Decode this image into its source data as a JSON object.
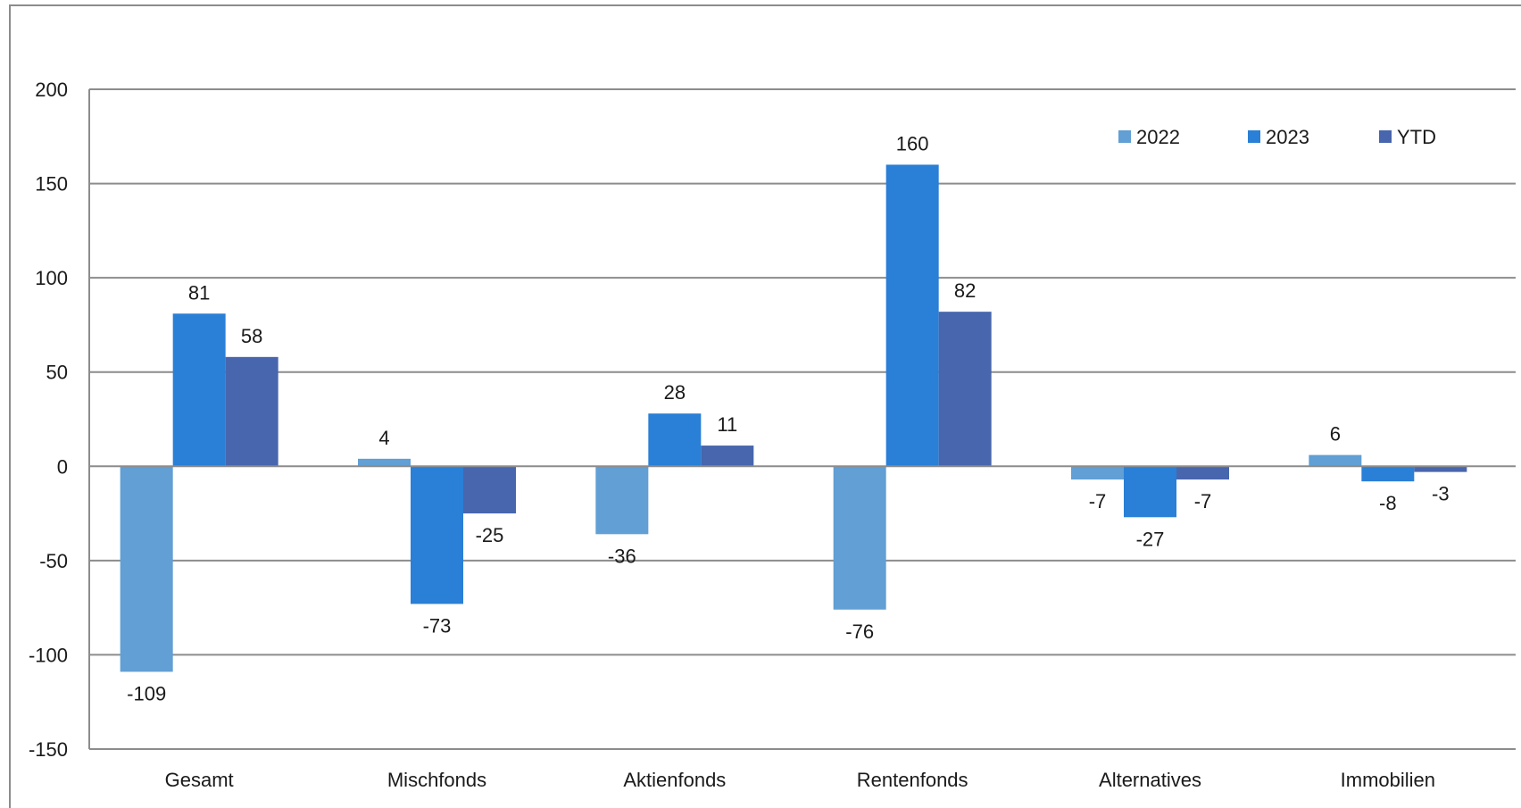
{
  "chart_data": {
    "type": "bar",
    "categories": [
      "Gesamt",
      "Mischfonds",
      "Aktienfonds",
      "Rentenfonds",
      "Alternatives",
      "Immobilien"
    ],
    "series": [
      {
        "name": "2022",
        "color": "#619fd4",
        "values": [
          -109,
          4,
          -36,
          -76,
          -7,
          6
        ]
      },
      {
        "name": "2023",
        "color": "#2a7fd6",
        "values": [
          81,
          -73,
          28,
          160,
          -27,
          -8
        ]
      },
      {
        "name": "YTD",
        "color": "#4866ad",
        "values": [
          58,
          -25,
          11,
          82,
          -7,
          -3
        ]
      }
    ],
    "ylim": [
      -150,
      200
    ],
    "yticks": [
      200,
      150,
      100,
      50,
      0,
      -50,
      -100,
      -150
    ],
    "ytick_labels": [
      "200",
      "150",
      "100",
      "50",
      "0",
      "-50",
      "-100",
      "-150"
    ],
    "data_labels": [
      [
        "-109",
        "4",
        "-36",
        "-76",
        "-7",
        "6"
      ],
      [
        "81",
        "-73",
        "28",
        "160",
        "-27",
        "-8"
      ],
      [
        "58",
        "-25",
        "11",
        "82",
        "-7",
        "-3"
      ]
    ],
    "title": "",
    "xlabel": "",
    "ylabel": "",
    "grid": true,
    "legend_position": "top-right"
  }
}
